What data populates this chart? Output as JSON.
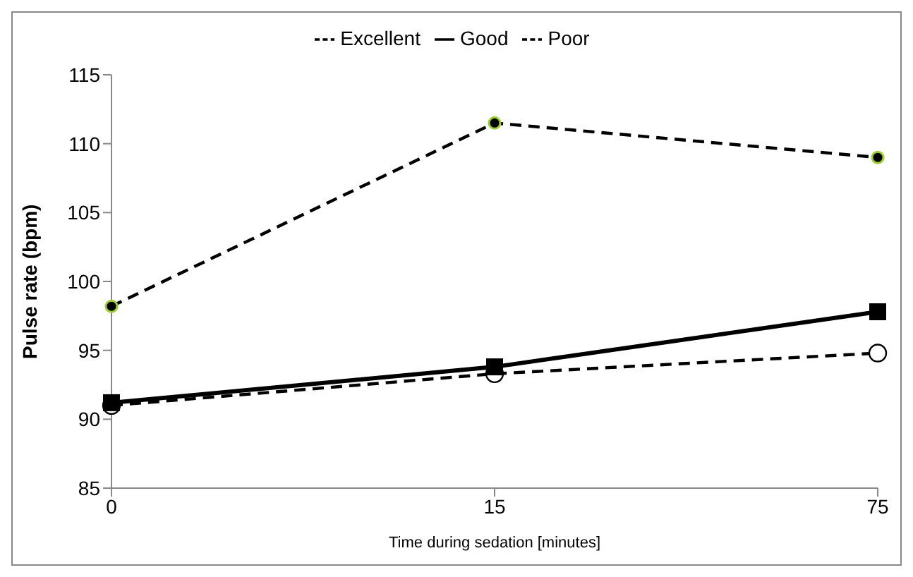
{
  "chart_data": {
    "type": "line",
    "xlabel": "Time during sedation [minutes]",
    "ylabel": "Pulse rate (bpm)",
    "categories": [
      "0",
      "15",
      "75"
    ],
    "series": [
      {
        "name": "Excellent",
        "color": "#000000",
        "values": [
          91,
          93.3,
          94.8
        ],
        "marker": "circle",
        "line_style": "dashed"
      },
      {
        "name": "Good",
        "color": "#000000",
        "values": [
          91.2,
          93.8,
          97.8
        ],
        "marker": "square",
        "line_style": "solid"
      },
      {
        "name": "Poor",
        "color": "#000000",
        "values": [
          98.2,
          111.5,
          109
        ],
        "marker": "circle",
        "line_style": "dashed"
      }
    ],
    "ylim": [
      85,
      115
    ],
    "yticks": [
      85,
      90,
      95,
      100,
      105,
      110,
      115
    ],
    "legend": "top"
  }
}
